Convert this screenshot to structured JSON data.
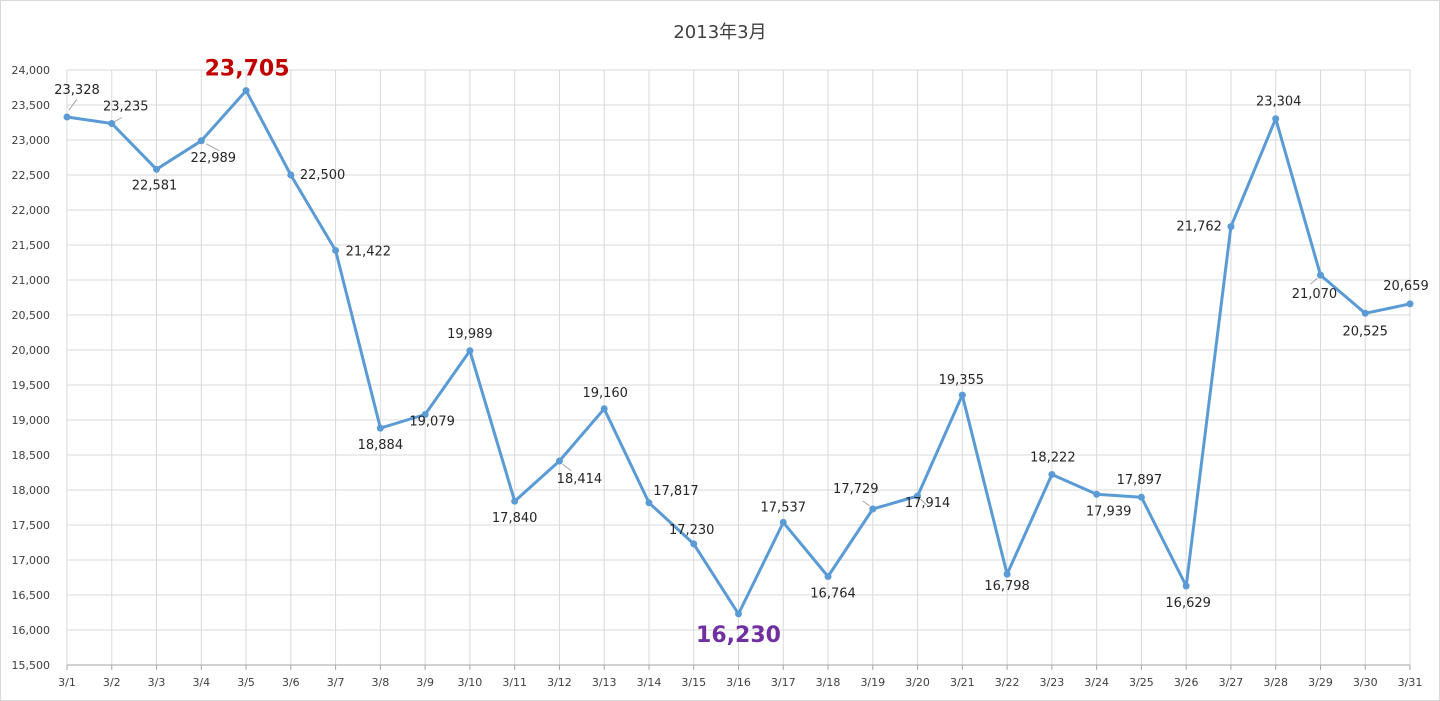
{
  "chart_data": {
    "type": "line",
    "title": "2013年3月",
    "xlabel": "",
    "ylabel": "",
    "ylim": [
      15500,
      24000
    ],
    "ystep": 500,
    "grid": true,
    "categories": [
      "3/1",
      "3/2",
      "3/3",
      "3/4",
      "3/5",
      "3/6",
      "3/7",
      "3/8",
      "3/9",
      "3/10",
      "3/11",
      "3/12",
      "3/13",
      "3/14",
      "3/15",
      "3/16",
      "3/17",
      "3/18",
      "3/19",
      "3/20",
      "3/21",
      "3/22",
      "3/23",
      "3/24",
      "3/25",
      "3/26",
      "3/27",
      "3/28",
      "3/29",
      "3/30",
      "3/31"
    ],
    "series": [
      {
        "values": [
          23328,
          23235,
          22581,
          22989,
          23705,
          22500,
          21422,
          18884,
          19079,
          19989,
          17840,
          18414,
          19160,
          17817,
          17230,
          16230,
          17537,
          16764,
          17729,
          17914,
          19355,
          16798,
          18222,
          17939,
          17897,
          16629,
          21762,
          23304,
          21070,
          20525,
          20659
        ],
        "labels": [
          "23,328",
          "23,235",
          "22,581",
          "22,989",
          "23,705",
          "22,500",
          "21,422",
          "18,884",
          "19,079",
          "19,989",
          "17,840",
          "18,414",
          "19,160",
          "17,817",
          "17,230",
          "16,230",
          "17,537",
          "16,764",
          "17,729",
          "17,914",
          "19,355",
          "16,798",
          "18,222",
          "17,939",
          "17,897",
          "16,629",
          "21,762",
          "23,304",
          "21,070",
          "20,525",
          "20,659"
        ]
      }
    ],
    "highlight": {
      "max_index": 4,
      "min_index": 15
    },
    "colors": {
      "line": "#5b9bd5",
      "grid": "#d9d9d9",
      "max_label": "#c00000",
      "min_label": "#7030a0"
    }
  }
}
